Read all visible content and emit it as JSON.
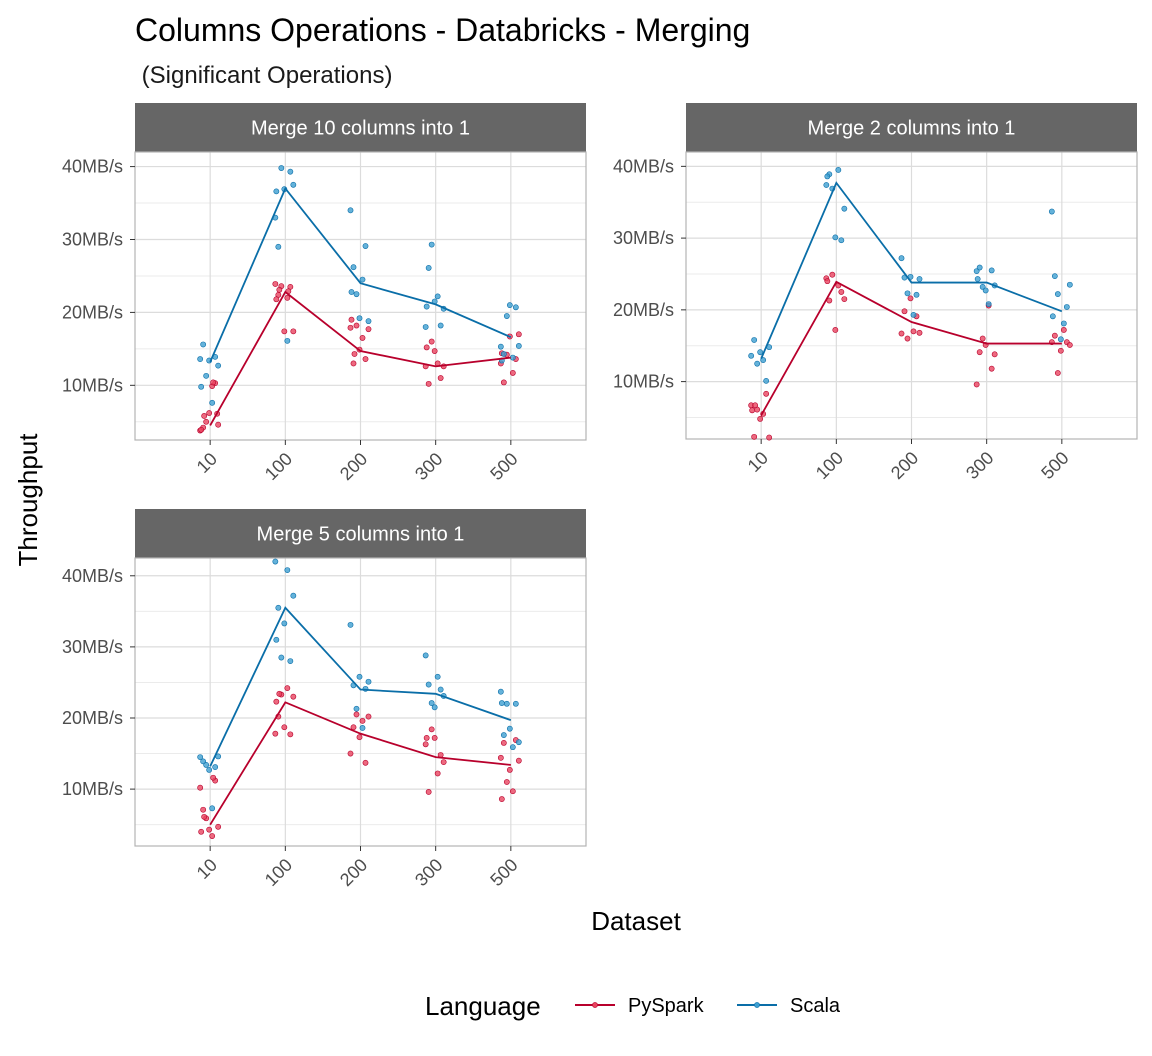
{
  "chart_data": {
    "type": "line",
    "title": "Columns Operations - Databricks - Merging",
    "subtitle": " (Significant Operations)",
    "xlabel": "Dataset",
    "ylabel": "Throughput",
    "categories": [
      "10",
      "100",
      "200",
      "300",
      "500"
    ],
    "y_unit_suffix": "MB/s",
    "y_ticks": [
      10,
      20,
      30,
      40
    ],
    "grid": true,
    "legend": {
      "title": "Language",
      "position": "bottom",
      "entries": [
        {
          "name": "PySpark",
          "color": "#b8002c",
          "point_color": "#e8445f"
        },
        {
          "name": "Scala",
          "color": "#0a6ea8",
          "point_color": "#3d9fd1"
        }
      ]
    },
    "panels": [
      {
        "title": "Merge 10 columns into 1",
        "ylim": [
          2.5,
          42
        ],
        "series": [
          {
            "name": "PySpark",
            "values": [
              4.5,
              22.8,
              14.7,
              12.6,
              13.8
            ],
            "points": [
              [
                3.8,
                4.2,
                5.0,
                6.2,
                9.9,
                10.3,
                4.6,
                3.9,
                5.8,
                10.4,
                6.1
              ],
              [
                23.9,
                22.4,
                23.6,
                17.4,
                22.0,
                23.5,
                17.4,
                21.8,
                23.1,
                22.9
              ],
              [
                17.9,
                13.0,
                18.2,
                14.9,
                16.5,
                13.6,
                17.7,
                19.0,
                14.3
              ],
              [
                12.6,
                10.2,
                16.0,
                14.7,
                13.0,
                11.0,
                12.6,
                15.2
              ],
              [
                13.0,
                10.4,
                14.2,
                16.7,
                11.7,
                13.6,
                17.0,
                14.4
              ]
            ]
          },
          {
            "name": "Scala",
            "values": [
              13.2,
              37.0,
              24.0,
              21.1,
              16.6
            ],
            "points": [
              [
                13.6,
                15.6,
                11.3,
                13.4,
                7.6,
                13.9,
                12.7,
                9.8
              ],
              [
                33.0,
                29.0,
                39.8,
                36.9,
                16.1,
                39.3,
                37.5,
                36.6
              ],
              [
                34.0,
                26.2,
                22.5,
                19.2,
                24.5,
                29.1,
                18.8,
                22.8
              ],
              [
                18.0,
                26.1,
                29.3,
                21.5,
                22.2,
                18.2,
                20.5,
                20.8
              ],
              [
                15.3,
                14.3,
                19.5,
                21.0,
                13.8,
                20.7,
                15.4,
                13.4
              ]
            ]
          }
        ]
      },
      {
        "title": "Merge 2 columns into 1",
        "ylim": [
          2,
          42
        ],
        "series": [
          {
            "name": "PySpark",
            "values": [
              5.3,
              23.9,
              18.3,
              15.3,
              15.3
            ],
            "points": [
              [
                6.7,
                2.3,
                6.1,
                4.8,
                5.5,
                8.3,
                2.2,
                6.0,
                6.7
              ],
              [
                24.4,
                21.3,
                24.9,
                17.2,
                23.4,
                22.5,
                21.5,
                24.0
              ],
              [
                16.7,
                19.8,
                16.0,
                21.6,
                17.0,
                19.1,
                16.8
              ],
              [
                9.6,
                14.1,
                16.0,
                15.1,
                20.6,
                11.8,
                13.8
              ],
              [
                15.5,
                16.4,
                11.2,
                14.3,
                17.2,
                15.5,
                15.1
              ]
            ]
          },
          {
            "name": "Scala",
            "values": [
              13.2,
              37.7,
              23.8,
              23.8,
              19.8
            ],
            "points": [
              [
                13.6,
                15.8,
                12.5,
                14.1,
                13.0,
                10.1,
                14.8
              ],
              [
                37.4,
                38.9,
                36.9,
                30.1,
                39.5,
                29.7,
                34.1,
                38.6
              ],
              [
                27.2,
                24.5,
                22.3,
                24.6,
                19.3,
                22.1,
                24.3
              ],
              [
                25.4,
                25.9,
                23.2,
                22.7,
                20.8,
                25.5,
                23.4,
                24.3
              ],
              [
                33.7,
                24.7,
                22.2,
                15.9,
                18.1,
                20.4,
                23.5,
                19.1
              ]
            ]
          }
        ]
      },
      {
        "title": "Merge 5 columns into 1",
        "ylim": [
          2,
          42.5
        ],
        "series": [
          {
            "name": "PySpark",
            "values": [
              5.0,
              22.2,
              17.8,
              14.5,
              13.4
            ],
            "points": [
              [
                10.2,
                7.1,
                5.9,
                4.3,
                3.4,
                11.2,
                4.7,
                4.0,
                6.1,
                11.6
              ],
              [
                17.8,
                20.2,
                23.3,
                18.7,
                24.2,
                17.7,
                23.0,
                22.3,
                23.4
              ],
              [
                15.0,
                18.7,
                20.5,
                17.3,
                19.6,
                13.7,
                20.2
              ],
              [
                16.3,
                9.6,
                18.4,
                17.2,
                12.2,
                14.8,
                13.8,
                17.2
              ],
              [
                14.4,
                16.5,
                11.0,
                12.7,
                9.7,
                16.9,
                14.0,
                8.6
              ]
            ]
          },
          {
            "name": "Scala",
            "values": [
              13.2,
              35.5,
              24.0,
              23.4,
              19.7
            ],
            "points": [
              [
                14.5,
                13.9,
                13.4,
                12.7,
                7.3,
                13.1,
                14.6
              ],
              [
                42.0,
                35.5,
                28.5,
                33.3,
                40.8,
                28.0,
                37.2,
                31.0
              ],
              [
                33.1,
                24.6,
                21.3,
                25.8,
                18.6,
                24.1,
                25.1
              ],
              [
                28.8,
                24.7,
                22.1,
                21.5,
                25.8,
                24.0,
                23.1
              ],
              [
                23.7,
                17.6,
                22.0,
                18.5,
                15.9,
                22.0,
                16.6,
                22.1
              ]
            ]
          }
        ]
      }
    ]
  }
}
